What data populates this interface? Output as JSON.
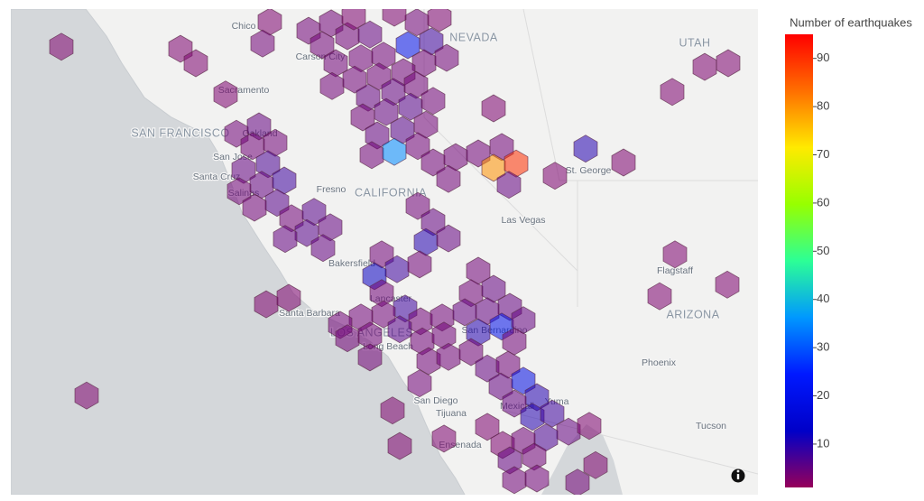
{
  "chart_data": {
    "type": "hexbin-map",
    "colorbar_title": "Number of earthquakes",
    "colorscale": [
      "rgb(150,0,90)",
      "rgb(0,0,200)",
      "rgb(0,25,255)",
      "rgb(0,152,255)",
      "rgb(44,255,150)",
      "rgb(151,255,0)",
      "rgb(255,234,0)",
      "rgb(255,111,0)",
      "rgb(255,0,0)"
    ],
    "clim": [
      1,
      95
    ],
    "cticks": [
      10,
      20,
      30,
      40,
      50,
      60,
      70,
      80,
      90
    ],
    "lon": [
      -125.04,
      -122.4,
      -122.06,
      -120.42,
      -120.58,
      -121.4,
      -119.56,
      -119.06,
      -119.26,
      -118.7,
      -118.2,
      -118.56,
      -117.16,
      -116.66,
      -117.66,
      -117.36,
      -116.84,
      -118.96,
      -118.4,
      -117.9,
      -117.0,
      -116.5,
      -119.04,
      -118.54,
      -118.0,
      -117.46,
      -118.24,
      -117.68,
      -117.18,
      -118.36,
      -117.84,
      -117.3,
      -116.8,
      -118.04,
      -117.48,
      -116.96,
      -118.16,
      -117.66,
      -117.14,
      -116.8,
      -116.3,
      -115.8,
      -115.28,
      -116.46,
      -115.46,
      -114.96,
      -115.12,
      -115.46,
      -113.42,
      -114.1,
      -112.58,
      -111.5,
      -110.78,
      -110.26,
      -121.16,
      -120.66,
      -120.8,
      -120.3,
      -121.0,
      -120.46,
      -120.6,
      -120.1,
      -121.1,
      -120.26,
      -120.76,
      -119.94,
      -119.44,
      -119.6,
      -119.08,
      -120.08,
      -119.24,
      -117.14,
      -116.8,
      -116.96,
      -116.46,
      -117.94,
      -117.6,
      -118.1,
      -117.1,
      -115.8,
      -115.96,
      -115.46,
      -115.1,
      -115.6,
      -120.5,
      -120.0,
      -117.94,
      -117.42,
      -117.9,
      -118.4,
      -118.86,
      -117.08,
      -116.6,
      -116.1,
      -117.54,
      -117.04,
      -116.56,
      -115.8,
      -115.28,
      -114.8,
      -115.0,
      -118.7,
      -118.2,
      -118.2,
      -116.9,
      -116.46,
      -115.96,
      -117.1,
      -115.6,
      -115.14,
      -115.3,
      -114.8,
      -114.5,
      -115.0,
      -124.48,
      -117.7,
      -114.6,
      -114.16,
      -113.8,
      -113.34,
      -114.3,
      -115.6,
      -115.26,
      -114.8,
      -115.1,
      -114.56,
      -115.0,
      -114.5,
      -117.54,
      -116.56,
      -113.2,
      -113.6,
      -111.44,
      -111.78,
      -110.28
    ],
    "lat": [
      39.44,
      39.4,
      39.13,
      39.91,
      39.5,
      38.54,
      39.74,
      39.88,
      39.47,
      39.64,
      39.67,
      40.01,
      39.9,
      39.98,
      40.08,
      39.47,
      39.54,
      39.13,
      39.22,
      39.27,
      39.13,
      39.23,
      38.7,
      38.82,
      38.88,
      38.96,
      38.48,
      38.59,
      38.72,
      38.11,
      38.21,
      38.31,
      38.42,
      37.77,
      37.87,
      37.97,
      37.4,
      37.46,
      37.57,
      37.26,
      37.36,
      37.43,
      37.55,
      36.95,
      37.16,
      37.24,
      36.84,
      38.28,
      37.52,
      37.01,
      37.26,
      38.59,
      39.06,
      39.13,
      37.8,
      37.94,
      37.57,
      37.63,
      37.12,
      37.23,
      36.84,
      36.92,
      36.72,
      36.5,
      36.41,
      36.21,
      36.33,
      35.93,
      36.04,
      35.82,
      35.65,
      36.44,
      36.14,
      35.76,
      35.83,
      35.53,
      35.25,
      35.12,
      35.34,
      35.22,
      34.8,
      34.88,
      34.54,
      34.46,
      34.59,
      34.71,
      34.8,
      34.51,
      34.4,
      34.34,
      34.2,
      34.27,
      34.34,
      34.44,
      34.12,
      33.89,
      34.0,
      34.06,
      34.17,
      34.29,
      33.89,
      33.95,
      34.0,
      33.59,
      33.52,
      33.6,
      33.69,
      33.1,
      33.38,
      33.45,
      33.04,
      33.15,
      32.84,
      32.72,
      32.87,
      32.59,
      32.47,
      32.53,
      32.19,
      32.3,
      32.08,
      32.28,
      31.94,
      32.02,
      31.65,
      31.72,
      31.28,
      31.31,
      31.92,
      32.06,
      31.56,
      31.23,
      35.53,
      34.74,
      34.96
    ],
    "values": [
      3,
      3,
      3,
      3,
      4,
      3,
      4,
      4,
      4,
      4,
      5,
      3,
      4,
      3,
      3,
      20,
      8,
      4,
      4,
      4,
      4,
      4,
      4,
      4,
      4,
      4,
      5,
      5,
      4,
      4,
      5,
      6,
      4,
      5,
      6,
      4,
      4,
      35,
      4,
      4,
      4,
      4,
      4,
      4,
      80,
      90,
      5,
      3,
      10,
      3,
      3,
      3,
      3,
      3,
      4,
      5,
      4,
      4,
      5,
      7,
      5,
      8,
      4,
      6,
      4,
      4,
      6,
      6,
      5,
      5,
      5,
      4,
      5,
      10,
      5,
      4,
      8,
      12,
      4,
      4,
      4,
      5,
      5,
      5,
      3,
      3,
      4,
      8,
      4,
      4,
      4,
      4,
      4,
      5,
      6,
      4,
      4,
      10,
      20,
      5,
      4,
      4,
      4,
      4,
      4,
      4,
      4,
      4,
      5,
      4,
      5,
      18,
      10,
      5,
      3,
      3,
      10,
      8,
      5,
      3,
      7,
      3,
      3,
      4,
      5,
      4,
      4,
      4,
      3,
      3,
      3,
      4,
      3,
      3,
      3
    ],
    "map_labels": [
      "Chico",
      "Carson City",
      "NEVADA",
      "UTAH",
      "Sacramento",
      "SAN FRANCISCO",
      "Oakland",
      "San Jose",
      "Santa Cruz",
      "Salinas",
      "Fresno",
      "CALIFORNIA",
      "Las Vegas",
      "St. George",
      "Bakersfield",
      "Flagstaff",
      "Lancaster",
      "Santa Barbara",
      "ARIZONA",
      "LOS ANGELES",
      "San Bernardino",
      "Long Beach",
      "Phoenix",
      "San Diego",
      "Mexicali",
      "Yuma",
      "Tijuana",
      "Tucson",
      "Ensenada"
    ]
  }
}
